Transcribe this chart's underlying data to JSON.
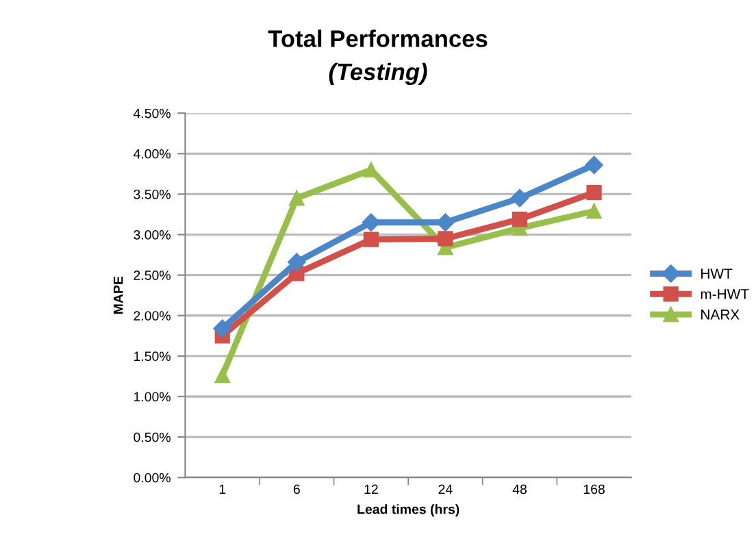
{
  "chart_data": {
    "type": "line",
    "title": "Total Performances",
    "subtitle": "(Testing)",
    "xlabel": "Lead times (hrs)",
    "ylabel": "MAPE",
    "categories": [
      "1",
      "6",
      "12",
      "24",
      "48",
      "168"
    ],
    "series": [
      {
        "name": "HWT",
        "color": "#4a86c8",
        "marker": "diamond",
        "values": [
          1.84,
          2.66,
          3.15,
          3.15,
          3.45,
          3.86
        ]
      },
      {
        "name": "m-HWT",
        "color": "#d2504a",
        "marker": "square",
        "values": [
          1.75,
          2.52,
          2.94,
          2.95,
          3.19,
          3.52
        ]
      },
      {
        "name": "NARX",
        "color": "#98bf4a",
        "marker": "triangle",
        "values": [
          1.26,
          3.45,
          3.8,
          2.84,
          3.08,
          3.29
        ]
      }
    ],
    "ylim": [
      0,
      4.5
    ],
    "yticks": [
      {
        "value": 0,
        "label": "0.00%"
      },
      {
        "value": 0.5,
        "label": "0.50%"
      },
      {
        "value": 1,
        "label": "1.00%"
      },
      {
        "value": 1.5,
        "label": "1.50%"
      },
      {
        "value": 2,
        "label": "2.00%"
      },
      {
        "value": 2.5,
        "label": "2.50%"
      },
      {
        "value": 3,
        "label": "3.00%"
      },
      {
        "value": 3.5,
        "label": "3.50%"
      },
      {
        "value": 4,
        "label": "4.00%"
      },
      {
        "value": 4.5,
        "label": "4.50%"
      }
    ],
    "grid": "y",
    "legend": "right",
    "line_style": "solid"
  }
}
